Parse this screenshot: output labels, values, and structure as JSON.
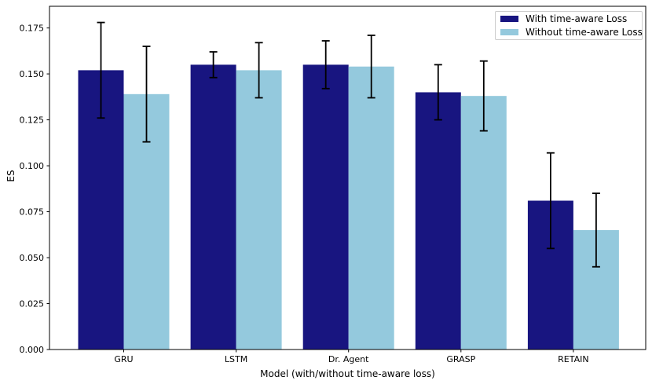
{
  "chart_data": {
    "type": "bar",
    "title": "",
    "xlabel": "Model (with/without time-aware loss)",
    "ylabel": "ES",
    "categories": [
      "GRU",
      "LSTM",
      "Dr. Agent",
      "GRASP",
      "RETAIN"
    ],
    "series": [
      {
        "name": "With time-aware Loss",
        "color": "#181580",
        "values": [
          0.152,
          0.155,
          0.155,
          0.14,
          0.081
        ],
        "errors": [
          0.026,
          0.007,
          0.013,
          0.015,
          0.026
        ]
      },
      {
        "name": "Without time-aware Loss",
        "color": "#94c9dd",
        "values": [
          0.139,
          0.152,
          0.154,
          0.138,
          0.065
        ],
        "errors": [
          0.026,
          0.015,
          0.017,
          0.019,
          0.02
        ]
      }
    ],
    "yticks": [
      0.0,
      0.025,
      0.05,
      0.075,
      0.1,
      0.125,
      0.15,
      0.175
    ],
    "ytick_labels": [
      "0.000",
      "0.025",
      "0.050",
      "0.075",
      "0.100",
      "0.125",
      "0.150",
      "0.175"
    ],
    "ylim": [
      0,
      0.1868
    ],
    "grid": false,
    "legend_position": "upper right",
    "errorbar_color": "#000000"
  }
}
